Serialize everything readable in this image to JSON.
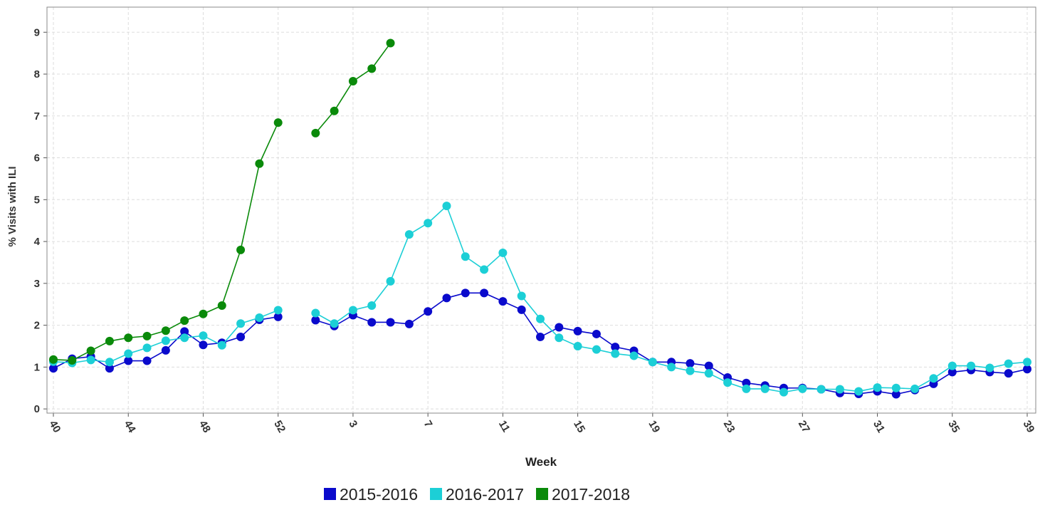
{
  "chart_data": {
    "type": "line",
    "x_label": "Week",
    "y_label": "% Visits with ILI",
    "categories": [
      "40",
      null,
      null,
      null,
      "44",
      null,
      null,
      null,
      "48",
      null,
      null,
      null,
      "52",
      null,
      null,
      null,
      "3",
      null,
      null,
      null,
      "7",
      null,
      null,
      null,
      "11",
      null,
      null,
      null,
      "15",
      null,
      null,
      null,
      "19",
      null,
      null,
      null,
      "23",
      null,
      null,
      null,
      "27",
      null,
      null,
      null,
      "31",
      null,
      null,
      null,
      "35",
      null,
      null,
      null,
      "39"
    ],
    "series": [
      {
        "name": "2015-2016",
        "color": "#0a0acc",
        "values": [
          0.97,
          1.2,
          1.25,
          0.97,
          1.15,
          1.15,
          1.4,
          1.85,
          1.53,
          1.58,
          1.72,
          2.13,
          2.2,
          null,
          2.12,
          1.98,
          2.24,
          2.07,
          2.07,
          2.03,
          2.33,
          2.65,
          2.77,
          2.77,
          2.57,
          2.37,
          1.72,
          1.95,
          1.86,
          1.79,
          1.48,
          1.39,
          1.12,
          1.12,
          1.09,
          1.03,
          0.75,
          0.62,
          0.56,
          0.5,
          0.5,
          0.47,
          0.38,
          0.36,
          0.42,
          0.35,
          0.45,
          0.6,
          0.88,
          0.93,
          0.88,
          0.85,
          0.95
        ]
      },
      {
        "name": "2016-2017",
        "color": "#1ccfd6",
        "values": [
          1.13,
          1.1,
          1.17,
          1.12,
          1.32,
          1.46,
          1.63,
          1.7,
          1.75,
          1.52,
          2.04,
          2.18,
          2.36,
          null,
          2.29,
          2.04,
          2.36,
          2.47,
          3.05,
          4.17,
          4.44,
          4.85,
          3.64,
          3.33,
          3.73,
          2.7,
          2.15,
          1.7,
          1.5,
          1.42,
          1.32,
          1.27,
          1.12,
          1.0,
          0.91,
          0.85,
          0.63,
          0.48,
          0.48,
          0.4,
          0.48,
          0.47,
          0.47,
          0.42,
          0.51,
          0.5,
          0.48,
          0.73,
          1.03,
          1.03,
          0.98,
          1.08,
          1.12
        ]
      },
      {
        "name": "2017-2018",
        "color": "#0a8a0a",
        "values": [
          1.18,
          1.16,
          1.39,
          1.62,
          1.7,
          1.74,
          1.87,
          2.11,
          2.27,
          2.47,
          3.8,
          5.86,
          6.84,
          null,
          6.59,
          7.12,
          7.83,
          8.13,
          8.74,
          null,
          null,
          null,
          null,
          null,
          null,
          null,
          null,
          null,
          null,
          null,
          null,
          null,
          null,
          null,
          null,
          null,
          null,
          null,
          null,
          null,
          null,
          null,
          null,
          null,
          null,
          null,
          null,
          null,
          null,
          null,
          null,
          null,
          null
        ]
      }
    ],
    "ylim": [
      -0.1,
      9.6
    ],
    "yticks": [
      0,
      1,
      2,
      3,
      4,
      5,
      6,
      7,
      8,
      9
    ],
    "grid": true
  }
}
